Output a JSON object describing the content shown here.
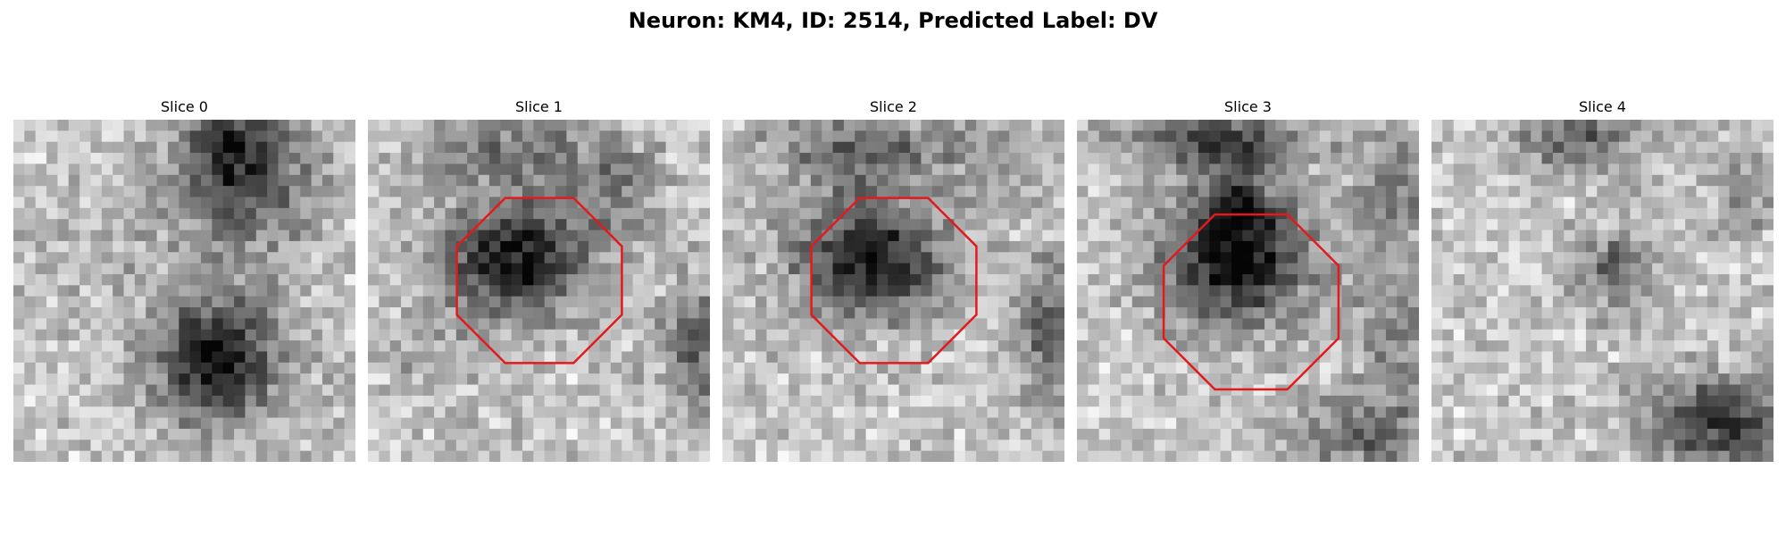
{
  "figure": {
    "title": "Neuron: KM4, ID: 2514, Predicted Label: DV"
  },
  "panels": [
    {
      "title": "Slice 0",
      "has_roi": false
    },
    {
      "title": "Slice 1",
      "has_roi": true
    },
    {
      "title": "Slice 2",
      "has_roi": true
    },
    {
      "title": "Slice 3",
      "has_roi": true
    },
    {
      "title": "Slice 4",
      "has_roi": false
    }
  ],
  "colors": {
    "roi_outline": "#e31a1c",
    "background": "#ffffff"
  },
  "icons": {
    "roi": "octagon-outline"
  }
}
